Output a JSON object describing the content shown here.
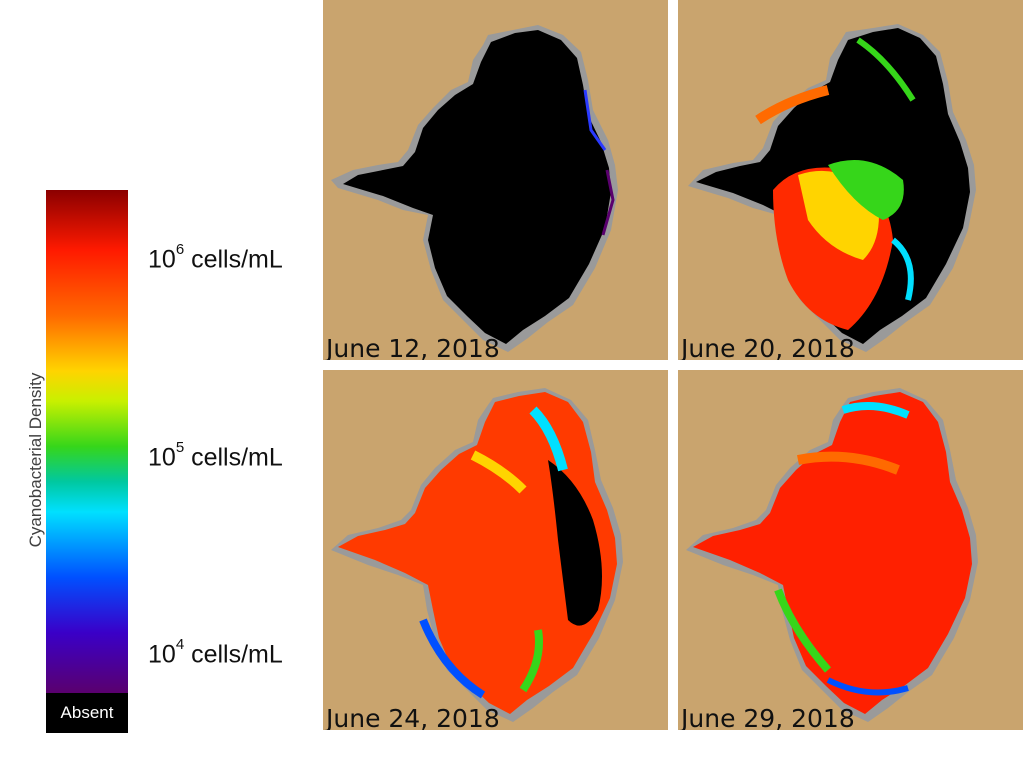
{
  "legend": {
    "title": "Cyanobacterial Density",
    "absent_label": "Absent",
    "ticks": [
      {
        "base": "10",
        "exp": "6",
        "unit": " cells/mL"
      },
      {
        "base": "10",
        "exp": "5",
        "unit": " cells/mL"
      },
      {
        "base": "10",
        "exp": "4",
        "unit": " cells/mL"
      }
    ]
  },
  "panels": [
    {
      "date": "June 12, 2018"
    },
    {
      "date": "June 20, 2018"
    },
    {
      "date": "June 24, 2018"
    },
    {
      "date": "June 29, 2018"
    }
  ],
  "colors": {
    "land": "#c9a46e",
    "cloud": "#9a9a9a",
    "absent": "#000000"
  }
}
